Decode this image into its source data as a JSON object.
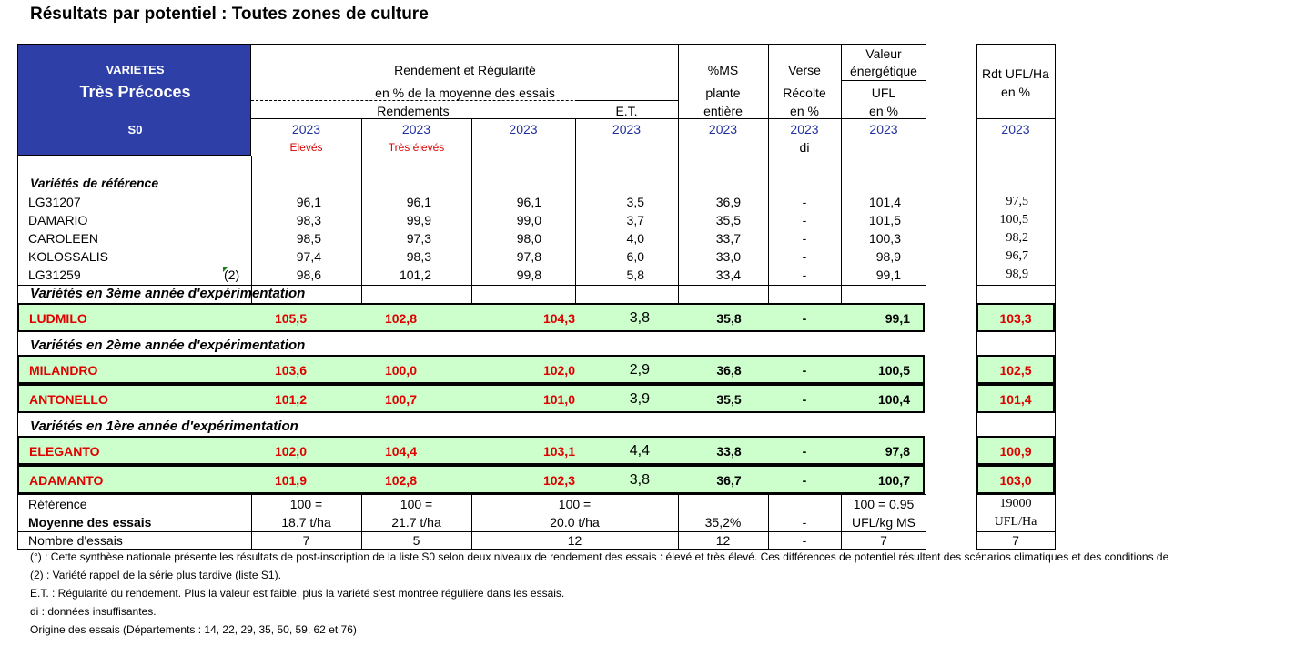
{
  "title": "Résultats par potentiel : Toutes zones de culture",
  "header": {
    "varietes": "VARIETES",
    "group": "Très Précoces",
    "list": "S0",
    "rendement_line1": "Rendement et Régularité",
    "rendement_line2": "en % de la moyenne des essais",
    "rendements": "Rendements",
    "et": "E.T.",
    "ms_line1": "%MS",
    "ms_line2": "plante",
    "ms_line3": "entière",
    "verse_line1": "Verse",
    "verse_line2": "Récolte",
    "verse_line3": "en %",
    "valeur_line1": "Valeur",
    "valeur_line2": "énergétique",
    "valeur_line3": "UFL",
    "valeur_line4": "en %",
    "rdt_line1": "Rdt UFL/Ha",
    "rdt_line2": "en %",
    "year": "2023",
    "eleves": "Elevés",
    "tres_eleves": "Très élevés",
    "di": "di"
  },
  "reference_title": "Variétés de référence",
  "reference_rows": [
    {
      "name": "LG31207",
      "note": "",
      "c1": "96,1",
      "c2": "96,1",
      "c3": "96,1",
      "et": "3,5",
      "ms": "36,9",
      "verse": "-",
      "ufl": "101,4",
      "rdt": "97,5"
    },
    {
      "name": "DAMARIO",
      "note": "",
      "c1": "98,3",
      "c2": "99,9",
      "c3": "99,0",
      "et": "3,7",
      "ms": "35,5",
      "verse": "-",
      "ufl": "101,5",
      "rdt": "100,5"
    },
    {
      "name": "CAROLEEN",
      "note": "",
      "c1": "98,5",
      "c2": "97,3",
      "c3": "98,0",
      "et": "4,0",
      "ms": "33,7",
      "verse": "-",
      "ufl": "100,3",
      "rdt": "98,2"
    },
    {
      "name": "KOLOSSALIS",
      "note": "",
      "c1": "97,4",
      "c2": "98,3",
      "c3": "97,8",
      "et": "6,0",
      "ms": "33,0",
      "verse": "-",
      "ufl": "98,9",
      "rdt": "96,7"
    },
    {
      "name": "LG31259",
      "note": "(2)",
      "c1": "98,6",
      "c2": "101,2",
      "c3": "99,8",
      "et": "5,8",
      "ms": "33,4",
      "verse": "-",
      "ufl": "99,1",
      "rdt": "98,9"
    }
  ],
  "section3": "Variétés en 3ème année d'expérimentation",
  "section2": "Variétés en 2ème année d'expérimentation",
  "section1": "Variétés en 1ère année d'expérimentation",
  "highlight_rows": [
    {
      "name": "LUDMILO",
      "c1": "105,5",
      "c2": "102,8",
      "c3": "104,3",
      "et": "3,8",
      "ms": "35,8",
      "verse": "-",
      "ufl": "99,1",
      "rdt": "103,3"
    },
    {
      "name": "MILANDRO",
      "c1": "103,6",
      "c2": "100,0",
      "c3": "102,0",
      "et": "2,9",
      "ms": "36,8",
      "verse": "-",
      "ufl": "100,5",
      "rdt": "102,5"
    },
    {
      "name": "ANTONELLO",
      "c1": "101,2",
      "c2": "100,7",
      "c3": "101,0",
      "et": "3,9",
      "ms": "35,5",
      "verse": "-",
      "ufl": "100,4",
      "rdt": "101,4"
    },
    {
      "name": "ELEGANTO",
      "c1": "102,0",
      "c2": "104,4",
      "c3": "103,1",
      "et": "4,4",
      "ms": "33,8",
      "verse": "-",
      "ufl": "97,8",
      "rdt": "100,9"
    },
    {
      "name": "ADAMANTO",
      "c1": "101,9",
      "c2": "102,8",
      "c3": "102,3",
      "et": "3,8",
      "ms": "36,7",
      "verse": "-",
      "ufl": "100,7",
      "rdt": "103,0"
    }
  ],
  "footer": {
    "reference_label": "Référence",
    "moyenne_label": "Moyenne des essais",
    "nombre_label": "Nombre d'essais",
    "ref_c1_a": "100 =",
    "ref_c1_b": "18.7 t/ha",
    "ref_c2_a": "100 =",
    "ref_c2_b": "21.7 t/ha",
    "ref_c3_a": "100 =",
    "ref_c3_b": "20.0 t/ha",
    "ref_ms": "35,2%",
    "ref_verse": "-",
    "ref_ufl_a": "100 = 0.95",
    "ref_ufl_b": "UFL/kg MS",
    "ref_rdt_a": "19000",
    "ref_rdt_b": "UFL/Ha",
    "n_c1": "7",
    "n_c2": "5",
    "n_c3": "12",
    "n_ms": "12",
    "n_verse": "-",
    "n_ufl": "7",
    "n_rdt": "7"
  },
  "notes": [
    "(°) : Cette synthèse nationale présente les résultats de post-inscription de la liste S0 selon deux niveaux de rendement des essais : élevé et très élevé. Ces différences de potentiel résultent des scénarios climatiques et des conditions de",
    "(2) : Variété rappel de la série plus tardive (liste S1).",
    "E.T. : Régularité du rendement. Plus la valeur est faible, plus la variété s'est montrée régulière dans les essais.",
    "di : données insuffisantes.",
    "Origine des essais (Départements : 14, 22, 29, 35, 50, 59, 62 et 76)"
  ]
}
